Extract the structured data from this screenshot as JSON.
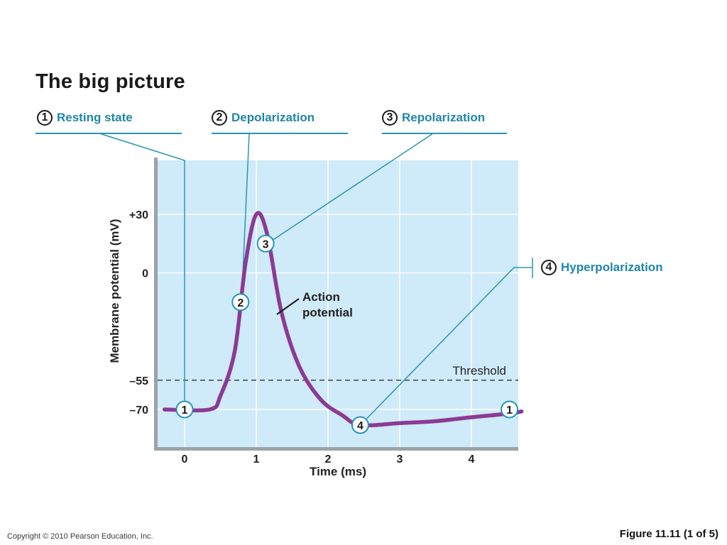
{
  "title": "The big picture",
  "stages": [
    {
      "number": "1",
      "label": "Resting state"
    },
    {
      "number": "2",
      "label": "Depolarization"
    },
    {
      "number": "3",
      "label": "Repolarization"
    },
    {
      "number": "4",
      "label": "Hyperpolarization"
    }
  ],
  "chart_data": {
    "type": "line",
    "ylabel": "Membrane potential (mV)",
    "xlabel": "Time (ms)",
    "xlim": [
      -0.3,
      4.7
    ],
    "ylim": [
      -90,
      50
    ],
    "xticks": [
      0,
      1,
      2,
      3,
      4
    ],
    "yticks": [
      {
        "value": 30,
        "label": "+30"
      },
      {
        "value": 0,
        "label": "0"
      },
      {
        "value": -55,
        "label": "–55"
      },
      {
        "value": -70,
        "label": "–70"
      }
    ],
    "grid": true,
    "threshold": {
      "value": -55,
      "label": "Threshold"
    },
    "series": [
      {
        "name": "Action potential",
        "color": "#8c3a93",
        "x": [
          -0.28,
          0.35,
          0.5,
          0.7,
          0.85,
          1.0,
          1.15,
          1.35,
          1.6,
          1.9,
          2.2,
          2.45,
          3.0,
          3.5,
          4.0,
          4.55,
          4.7
        ],
        "y": [
          -70,
          -70,
          -63,
          -40,
          5,
          30,
          20,
          -20,
          -48,
          -65,
          -73,
          -78,
          -77,
          -76,
          -74,
          -72,
          -71
        ]
      }
    ],
    "callouts": [
      {
        "number": "1",
        "x": 0.0,
        "y": -70
      },
      {
        "number": "2",
        "x": 0.78,
        "y": -15
      },
      {
        "number": "3",
        "x": 1.13,
        "y": 15
      },
      {
        "number": "4",
        "x": 2.45,
        "y": -78
      },
      {
        "number": "1",
        "x": 4.53,
        "y": -70
      }
    ]
  },
  "colors": {
    "plot_bg": "#cfeaf8",
    "accent": "#2a95b3",
    "curve": "#8c3a93",
    "axis": "#9aa3a8"
  },
  "footer": {
    "copyright": "Copyright © 2010 Pearson Education, Inc.",
    "figure": "Figure 11.11 (1 of 5)"
  }
}
